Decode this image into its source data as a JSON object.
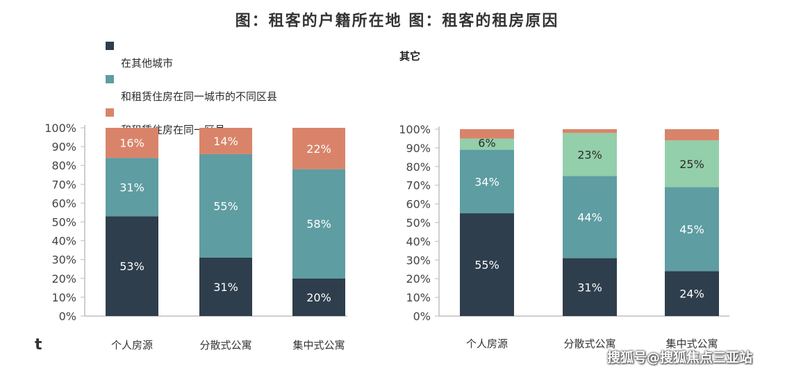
{
  "title": "图：租客的户籍所在地 图：租客的租房原因",
  "legend": [
    {
      "label": "在其他城市",
      "color": "#2e3e4c"
    },
    {
      "label": "和租赁住房在同一城市的不同区县",
      "color": "#5e9da2"
    },
    {
      "label": "和租赁住房在同一区县",
      "color": "#d9846a"
    }
  ],
  "right_legend_label": "其它",
  "corner_mark": "t",
  "watermark": "搜狐号@搜狐焦点三亚站",
  "chart_data": [
    {
      "type": "bar",
      "stacked": true,
      "categories": [
        "个人房源",
        "分散式公寓",
        "集中式公寓"
      ],
      "yticks": [
        "0%",
        "10%",
        "20%",
        "30%",
        "40%",
        "50%",
        "60%",
        "70%",
        "80%",
        "90%",
        "100%"
      ],
      "ylim": [
        0,
        100
      ],
      "series": [
        {
          "name": "在其他城市",
          "color": "#2e3e4c",
          "values": [
            53,
            31,
            20
          ],
          "labels": [
            "53%",
            "31%",
            "20%"
          ]
        },
        {
          "name": "和租赁住房在同一城市的不同区县",
          "color": "#5e9da2",
          "values": [
            31,
            55,
            58
          ],
          "labels": [
            "31%",
            "55%",
            "58%"
          ]
        },
        {
          "name": "和租赁住房在同一区县",
          "color": "#d9846a",
          "values": [
            16,
            14,
            22
          ],
          "labels": [
            "16%",
            "14%",
            "22%"
          ]
        }
      ]
    },
    {
      "type": "bar",
      "stacked": true,
      "categories": [
        "个人房源",
        "分散式公寓",
        "集中式公寓"
      ],
      "yticks": [
        "0%",
        "10%",
        "20%",
        "30%",
        "40%",
        "50%",
        "60%",
        "70%",
        "80%",
        "90%",
        "100%"
      ],
      "ylim": [
        0,
        100
      ],
      "series": [
        {
          "color": "#2e3e4c",
          "values": [
            55,
            31,
            24
          ],
          "labels": [
            "55%",
            "31%",
            "24%"
          ]
        },
        {
          "color": "#5e9da2",
          "values": [
            34,
            44,
            45
          ],
          "labels": [
            "34%",
            "44%",
            "45%"
          ]
        },
        {
          "color": "#93cfaa",
          "values": [
            6,
            23,
            25
          ],
          "labels": [
            "6%",
            "23%",
            "25%"
          ]
        },
        {
          "name": "其它",
          "color": "#d9846a",
          "values": [
            5,
            2,
            6
          ],
          "labels": [
            "",
            "",
            ""
          ]
        }
      ]
    }
  ]
}
